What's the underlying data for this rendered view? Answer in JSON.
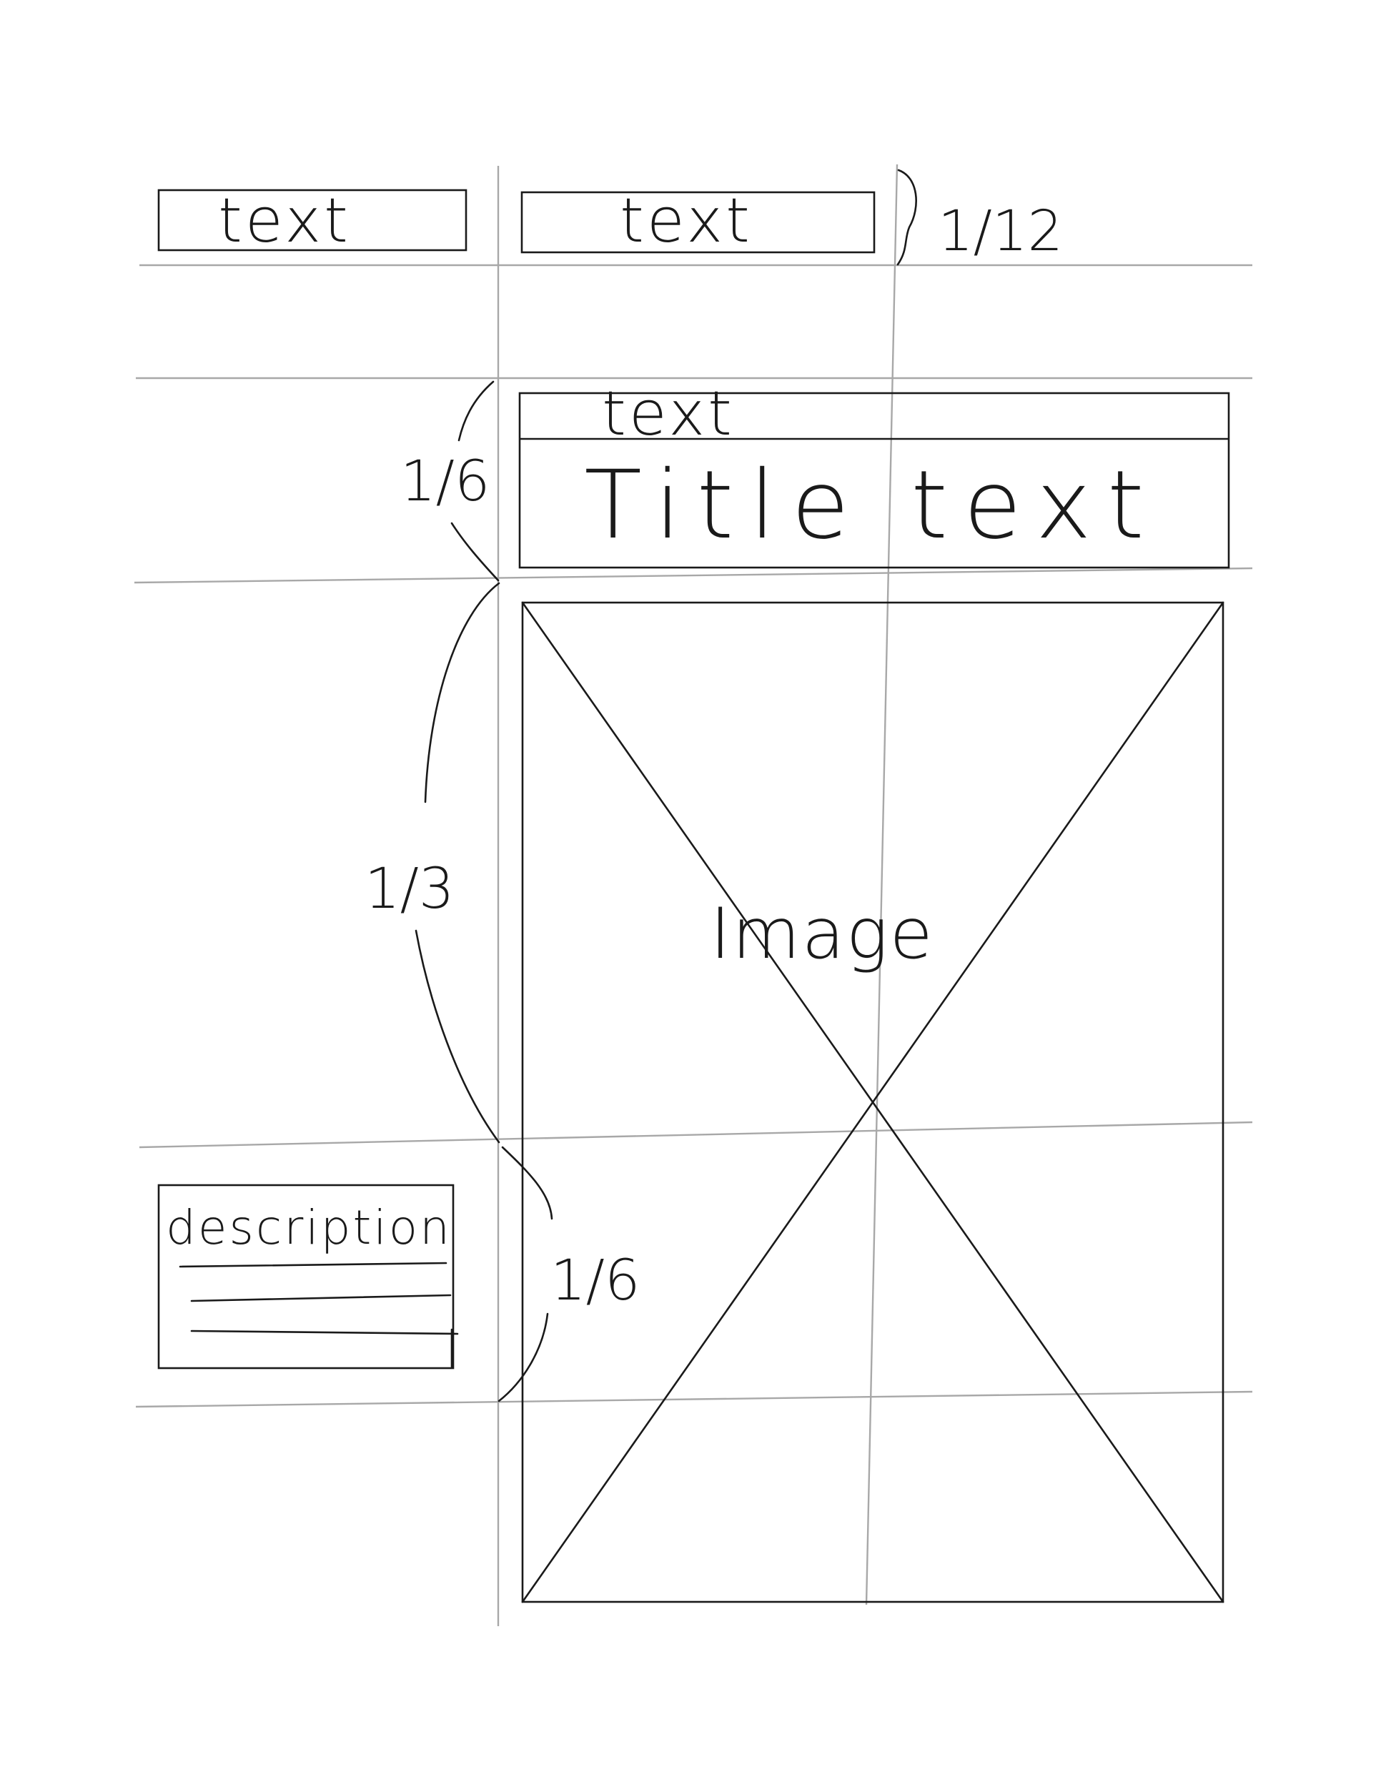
{
  "top_boxes": [
    {
      "label": "text"
    },
    {
      "label": "text"
    }
  ],
  "header_box": {
    "label": "text",
    "title": "Title text"
  },
  "image_placeholder": {
    "label": "Image"
  },
  "description_box": {
    "label": "description"
  },
  "proportions": {
    "top_row": "1/12",
    "header_row": "1/6",
    "image_row": "1/3",
    "description_row": "1/6"
  },
  "colors": {
    "ink": "#1a1a1a",
    "guide": "#a8a8a8",
    "paper": "#ffffff"
  }
}
